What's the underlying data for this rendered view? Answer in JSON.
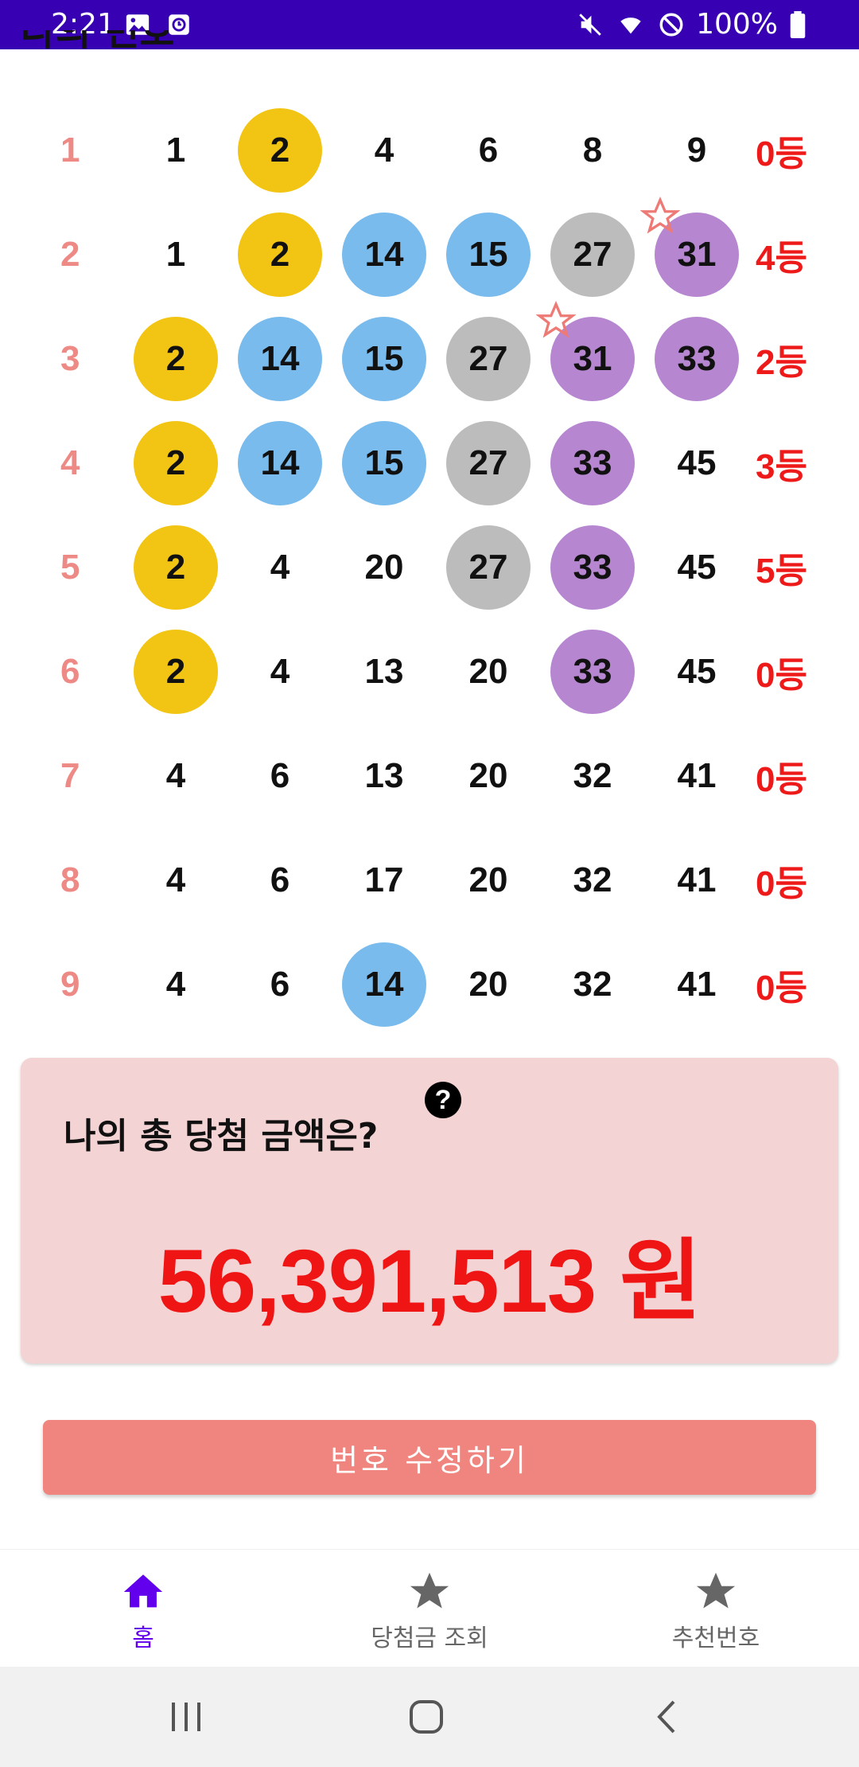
{
  "status_bar": {
    "time": "2:21",
    "battery": "100%",
    "background": "#3700b3"
  },
  "section_title": "나의 번호",
  "rows": [
    {
      "num": "1",
      "balls": [
        {
          "v": "1",
          "c": ""
        },
        {
          "v": "2",
          "c": "yellow"
        },
        {
          "v": "4",
          "c": ""
        },
        {
          "v": "6",
          "c": ""
        },
        {
          "v": "8",
          "c": ""
        },
        {
          "v": "9",
          "c": ""
        }
      ],
      "rank": "0등"
    },
    {
      "num": "2",
      "balls": [
        {
          "v": "1",
          "c": ""
        },
        {
          "v": "2",
          "c": "yellow"
        },
        {
          "v": "14",
          "c": "blue"
        },
        {
          "v": "15",
          "c": "blue"
        },
        {
          "v": "27",
          "c": "gray"
        },
        {
          "v": "31",
          "c": "purple",
          "bonus": true
        }
      ],
      "rank": "4등"
    },
    {
      "num": "3",
      "balls": [
        {
          "v": "2",
          "c": "yellow"
        },
        {
          "v": "14",
          "c": "blue"
        },
        {
          "v": "15",
          "c": "blue"
        },
        {
          "v": "27",
          "c": "gray"
        },
        {
          "v": "31",
          "c": "purple",
          "bonus": true
        },
        {
          "v": "33",
          "c": "purple"
        }
      ],
      "rank": "2등"
    },
    {
      "num": "4",
      "balls": [
        {
          "v": "2",
          "c": "yellow"
        },
        {
          "v": "14",
          "c": "blue"
        },
        {
          "v": "15",
          "c": "blue"
        },
        {
          "v": "27",
          "c": "gray"
        },
        {
          "v": "33",
          "c": "purple"
        },
        {
          "v": "45",
          "c": ""
        }
      ],
      "rank": "3등"
    },
    {
      "num": "5",
      "balls": [
        {
          "v": "2",
          "c": "yellow"
        },
        {
          "v": "4",
          "c": ""
        },
        {
          "v": "20",
          "c": ""
        },
        {
          "v": "27",
          "c": "gray"
        },
        {
          "v": "33",
          "c": "purple"
        },
        {
          "v": "45",
          "c": ""
        }
      ],
      "rank": "5등"
    },
    {
      "num": "6",
      "balls": [
        {
          "v": "2",
          "c": "yellow"
        },
        {
          "v": "4",
          "c": ""
        },
        {
          "v": "13",
          "c": ""
        },
        {
          "v": "20",
          "c": ""
        },
        {
          "v": "33",
          "c": "purple"
        },
        {
          "v": "45",
          "c": ""
        }
      ],
      "rank": "0등"
    },
    {
      "num": "7",
      "balls": [
        {
          "v": "4",
          "c": ""
        },
        {
          "v": "6",
          "c": ""
        },
        {
          "v": "13",
          "c": ""
        },
        {
          "v": "20",
          "c": ""
        },
        {
          "v": "32",
          "c": ""
        },
        {
          "v": "41",
          "c": ""
        }
      ],
      "rank": "0등"
    },
    {
      "num": "8",
      "balls": [
        {
          "v": "4",
          "c": ""
        },
        {
          "v": "6",
          "c": ""
        },
        {
          "v": "17",
          "c": ""
        },
        {
          "v": "20",
          "c": ""
        },
        {
          "v": "32",
          "c": ""
        },
        {
          "v": "41",
          "c": ""
        }
      ],
      "rank": "0등"
    },
    {
      "num": "9",
      "balls": [
        {
          "v": "4",
          "c": ""
        },
        {
          "v": "6",
          "c": ""
        },
        {
          "v": "14",
          "c": "blue"
        },
        {
          "v": "20",
          "c": ""
        },
        {
          "v": "32",
          "c": ""
        },
        {
          "v": "41",
          "c": ""
        }
      ],
      "rank": "0등"
    }
  ],
  "ball_colors": {
    "yellow": "#f2c413",
    "blue": "#79bbec",
    "gray": "#bcbcbc",
    "purple": "#b687d0"
  },
  "bonus_icon": "star-outline-icon",
  "total_card": {
    "label": "나의 총 당첨 금액은?",
    "help_icon": "help-icon",
    "amount": "56,391,513 원"
  },
  "edit_button_label": "번호 수정하기",
  "bottom_nav": [
    {
      "label": "홈",
      "icon": "home-icon",
      "active": true
    },
    {
      "label": "당첨금 조회",
      "icon": "star-icon",
      "active": false
    },
    {
      "label": "추천번호",
      "icon": "star-icon",
      "active": false
    }
  ],
  "accent_color": "#6200ee",
  "rank_color": "#ee1a1a",
  "row_number_color": "#ee8a85"
}
